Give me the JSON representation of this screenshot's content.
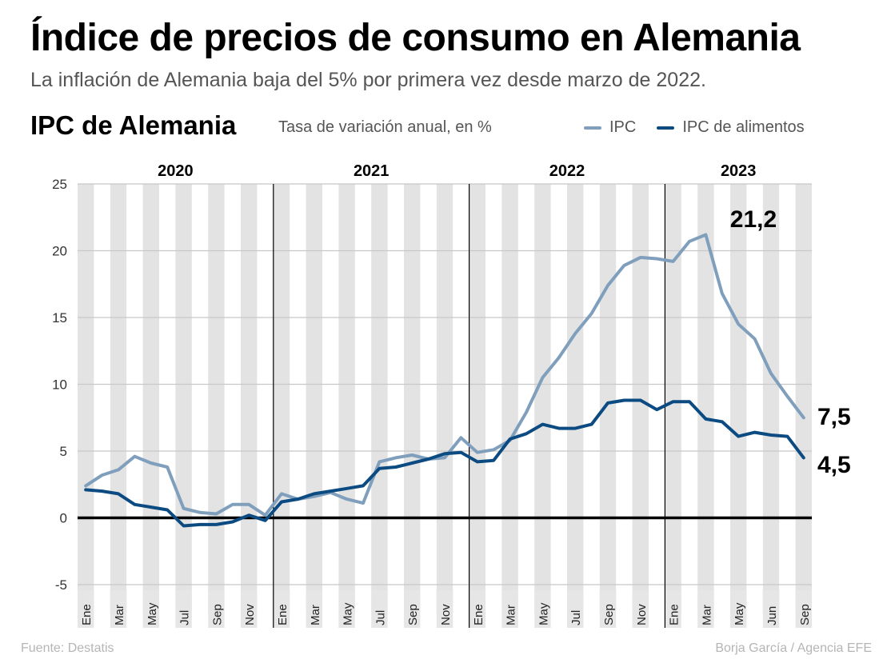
{
  "header": {
    "title": "Índice de precios de consumo en Alemania",
    "subtitle": "La inflación de Alemania baja del 5% por primera vez desde marzo de 2022.",
    "chart_title": "IPC de Alemania",
    "chart_unit": "Tasa de variación anual, en %"
  },
  "legend": [
    {
      "label": "IPC",
      "color": "#7f9fbc"
    },
    {
      "label": "IPC de alimentos",
      "color": "#0b4b82"
    }
  ],
  "footer": {
    "source": "Fuente: Destatis",
    "credit": "Borja García / Agencia EFE"
  },
  "chart_data": {
    "type": "line",
    "title": "IPC de Alemania",
    "subtitle": "Tasa de variación anual, en %",
    "xlabel": "",
    "ylabel": "",
    "ylim": [
      -5,
      25
    ],
    "yticks": [
      -5,
      0,
      5,
      10,
      15,
      20,
      25
    ],
    "grid": true,
    "legend_position": "top-right",
    "years": [
      "2020",
      "2021",
      "2022",
      "2023"
    ],
    "x": [
      "Ene 2020",
      "Feb 2020",
      "Mar 2020",
      "Abr 2020",
      "May 2020",
      "Jun 2020",
      "Jul 2020",
      "Ago 2020",
      "Sep 2020",
      "Oct 2020",
      "Nov 2020",
      "Dic 2020",
      "Ene 2021",
      "Feb 2021",
      "Mar 2021",
      "Abr 2021",
      "May 2021",
      "Jun 2021",
      "Jul 2021",
      "Ago 2021",
      "Sep 2021",
      "Oct 2021",
      "Nov 2021",
      "Dic 2021",
      "Ene 2022",
      "Feb 2022",
      "Mar 2022",
      "Abr 2022",
      "May 2022",
      "Jun 2022",
      "Jul 2022",
      "Ago 2022",
      "Sep 2022",
      "Oct 2022",
      "Nov 2022",
      "Dic 2022",
      "Ene 2023",
      "Feb 2023",
      "Mar 2023",
      "Abr 2023",
      "May 2023",
      "Jun 2023",
      "Jul 2023",
      "Ago 2023",
      "Sep 2023"
    ],
    "tick_labels": [
      {
        "index": 0,
        "label": "Ene"
      },
      {
        "index": 2,
        "label": "Mar"
      },
      {
        "index": 4,
        "label": "May"
      },
      {
        "index": 6,
        "label": "Jul"
      },
      {
        "index": 8,
        "label": "Sep"
      },
      {
        "index": 10,
        "label": "Nov"
      },
      {
        "index": 12,
        "label": "Ene"
      },
      {
        "index": 14,
        "label": "Mar"
      },
      {
        "index": 16,
        "label": "May"
      },
      {
        "index": 18,
        "label": "Jul"
      },
      {
        "index": 20,
        "label": "Sep"
      },
      {
        "index": 22,
        "label": "Nov"
      },
      {
        "index": 24,
        "label": "Ene"
      },
      {
        "index": 26,
        "label": "Mar"
      },
      {
        "index": 28,
        "label": "May"
      },
      {
        "index": 30,
        "label": "Jul"
      },
      {
        "index": 32,
        "label": "Sep"
      },
      {
        "index": 34,
        "label": "Nov"
      },
      {
        "index": 36,
        "label": "Ene"
      },
      {
        "index": 38,
        "label": "Mar"
      },
      {
        "index": 40,
        "label": "May"
      },
      {
        "index": 42,
        "label": "Jun"
      },
      {
        "index": 44,
        "label": "Sep"
      }
    ],
    "series": [
      {
        "name": "IPC",
        "color": "#7f9fbc",
        "values": [
          2.4,
          3.2,
          3.6,
          4.6,
          4.1,
          3.8,
          0.7,
          0.4,
          0.3,
          1.0,
          1.0,
          0.2,
          1.8,
          1.4,
          1.6,
          1.9,
          1.4,
          1.1,
          4.2,
          4.5,
          4.7,
          4.4,
          4.5,
          6.0,
          4.9,
          5.1,
          5.8,
          7.9,
          10.5,
          12.0,
          13.8,
          15.3,
          17.4,
          18.9,
          19.5,
          19.4,
          19.2,
          20.7,
          21.2,
          16.8,
          14.5,
          13.4,
          10.8,
          9.1,
          7.5
        ]
      },
      {
        "name": "IPC de alimentos",
        "color": "#0b4b82",
        "values": [
          2.1,
          2.0,
          1.8,
          1.0,
          0.8,
          0.6,
          -0.6,
          -0.5,
          -0.5,
          -0.3,
          0.2,
          -0.2,
          1.2,
          1.4,
          1.8,
          2.0,
          2.2,
          2.4,
          3.7,
          3.8,
          4.1,
          4.4,
          4.8,
          4.9,
          4.2,
          4.3,
          5.9,
          6.3,
          7.0,
          6.7,
          6.7,
          7.0,
          8.6,
          8.8,
          8.8,
          8.1,
          8.7,
          8.7,
          7.4,
          7.2,
          6.1,
          6.4,
          6.2,
          6.1,
          4.5
        ]
      }
    ],
    "annotations": [
      {
        "text": "21,2",
        "series": "IPC",
        "index": 38
      },
      {
        "text": "7,5",
        "series": "IPC",
        "index": 44
      },
      {
        "text": "4,5",
        "series": "IPC de alimentos",
        "index": 44
      }
    ]
  }
}
